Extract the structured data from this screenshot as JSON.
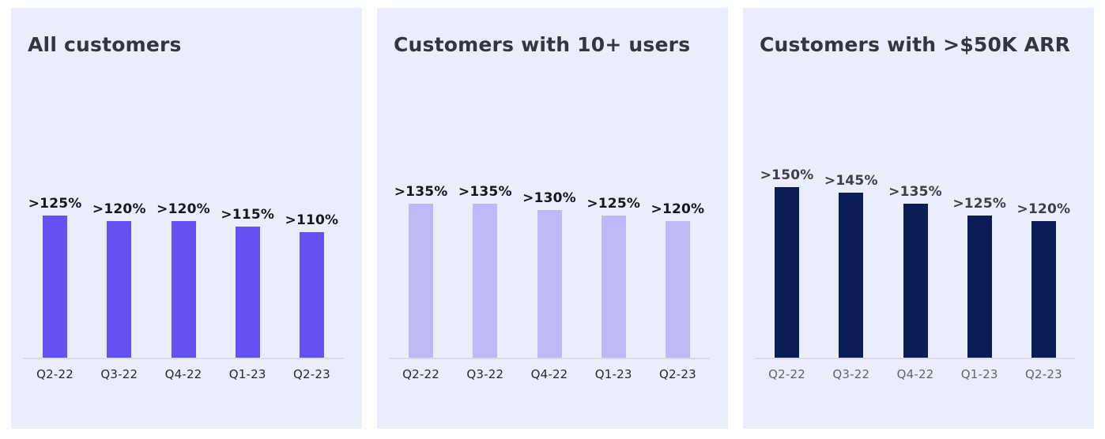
{
  "chart_data": [
    {
      "type": "bar",
      "title": "All customers",
      "categories": [
        "Q2-22",
        "Q3-22",
        "Q4-22",
        "Q1-23",
        "Q2-23"
      ],
      "values": [
        125,
        120,
        120,
        115,
        110
      ],
      "value_labels": [
        ">125%",
        ">120%",
        ">120%",
        ">115%",
        ">110%"
      ],
      "unit": "%",
      "xlabel": "",
      "ylabel": "",
      "grid": false,
      "legend": false,
      "panel_bg": "#EAEDFB",
      "bar_color": "#6352F2",
      "value_label_color": "#17171E",
      "axis_label_color": "#28282F",
      "axis_line_color": "#D9DAE2"
    },
    {
      "type": "bar",
      "title": "Customers with 10+ users",
      "categories": [
        "Q2-22",
        "Q3-22",
        "Q4-22",
        "Q1-23",
        "Q2-23"
      ],
      "values": [
        135,
        135,
        130,
        125,
        120
      ],
      "value_labels": [
        ">135%",
        ">135%",
        ">130%",
        ">125%",
        ">120%"
      ],
      "unit": "%",
      "xlabel": "",
      "ylabel": "",
      "grid": false,
      "legend": false,
      "panel_bg": "#EAEDFB",
      "bar_color": "#BFB8F7",
      "value_label_color": "#17171E",
      "axis_label_color": "#28282F",
      "axis_line_color": "#D9DAE2"
    },
    {
      "type": "bar",
      "title": "Customers with >$50K ARR",
      "categories": [
        "Q2-22",
        "Q3-22",
        "Q4-22",
        "Q1-23",
        "Q2-23"
      ],
      "values": [
        150,
        145,
        135,
        125,
        120
      ],
      "value_labels": [
        ">150%",
        ">145%",
        ">135%",
        ">125%",
        ">120%"
      ],
      "unit": "%",
      "xlabel": "",
      "ylabel": "",
      "grid": false,
      "legend": false,
      "panel_bg": "#EAEDFB",
      "bar_color": "#0A1D55",
      "value_label_color": "#3E3E46",
      "axis_label_color": "#64646F",
      "axis_line_color": "#D9DAE2"
    }
  ],
  "layout_note": "pixels_per_percent_point: 1.442"
}
